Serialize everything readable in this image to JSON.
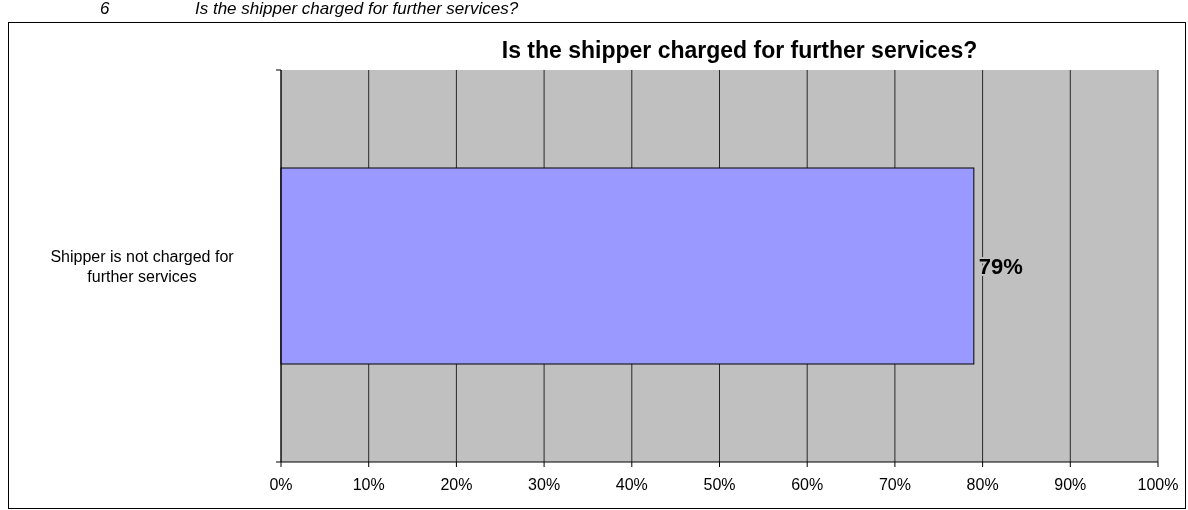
{
  "chart_data": {
    "type": "bar",
    "orientation": "horizontal",
    "title": "Is the shipper charged for further services?",
    "annotations": [
      "6 Is the shipper charged for further services?"
    ],
    "categories": [
      "Shipper is not charged for further services"
    ],
    "values": [
      79
    ],
    "value_labels": [
      "79%"
    ],
    "color": "#9999ff",
    "xlim": [
      0,
      100
    ],
    "xticks": [
      {
        "value": 0,
        "label": "0%"
      },
      {
        "value": 10,
        "label": "10%"
      },
      {
        "value": 20,
        "label": "20%"
      },
      {
        "value": 30,
        "label": "30%"
      },
      {
        "value": 40,
        "label": "40%"
      },
      {
        "value": 50,
        "label": "50%"
      },
      {
        "value": 60,
        "label": "60%"
      },
      {
        "value": 70,
        "label": "70%"
      },
      {
        "value": 80,
        "label": "80%"
      },
      {
        "value": 90,
        "label": "90%"
      },
      {
        "value": 100,
        "label": "100%"
      }
    ],
    "grid": "x"
  }
}
